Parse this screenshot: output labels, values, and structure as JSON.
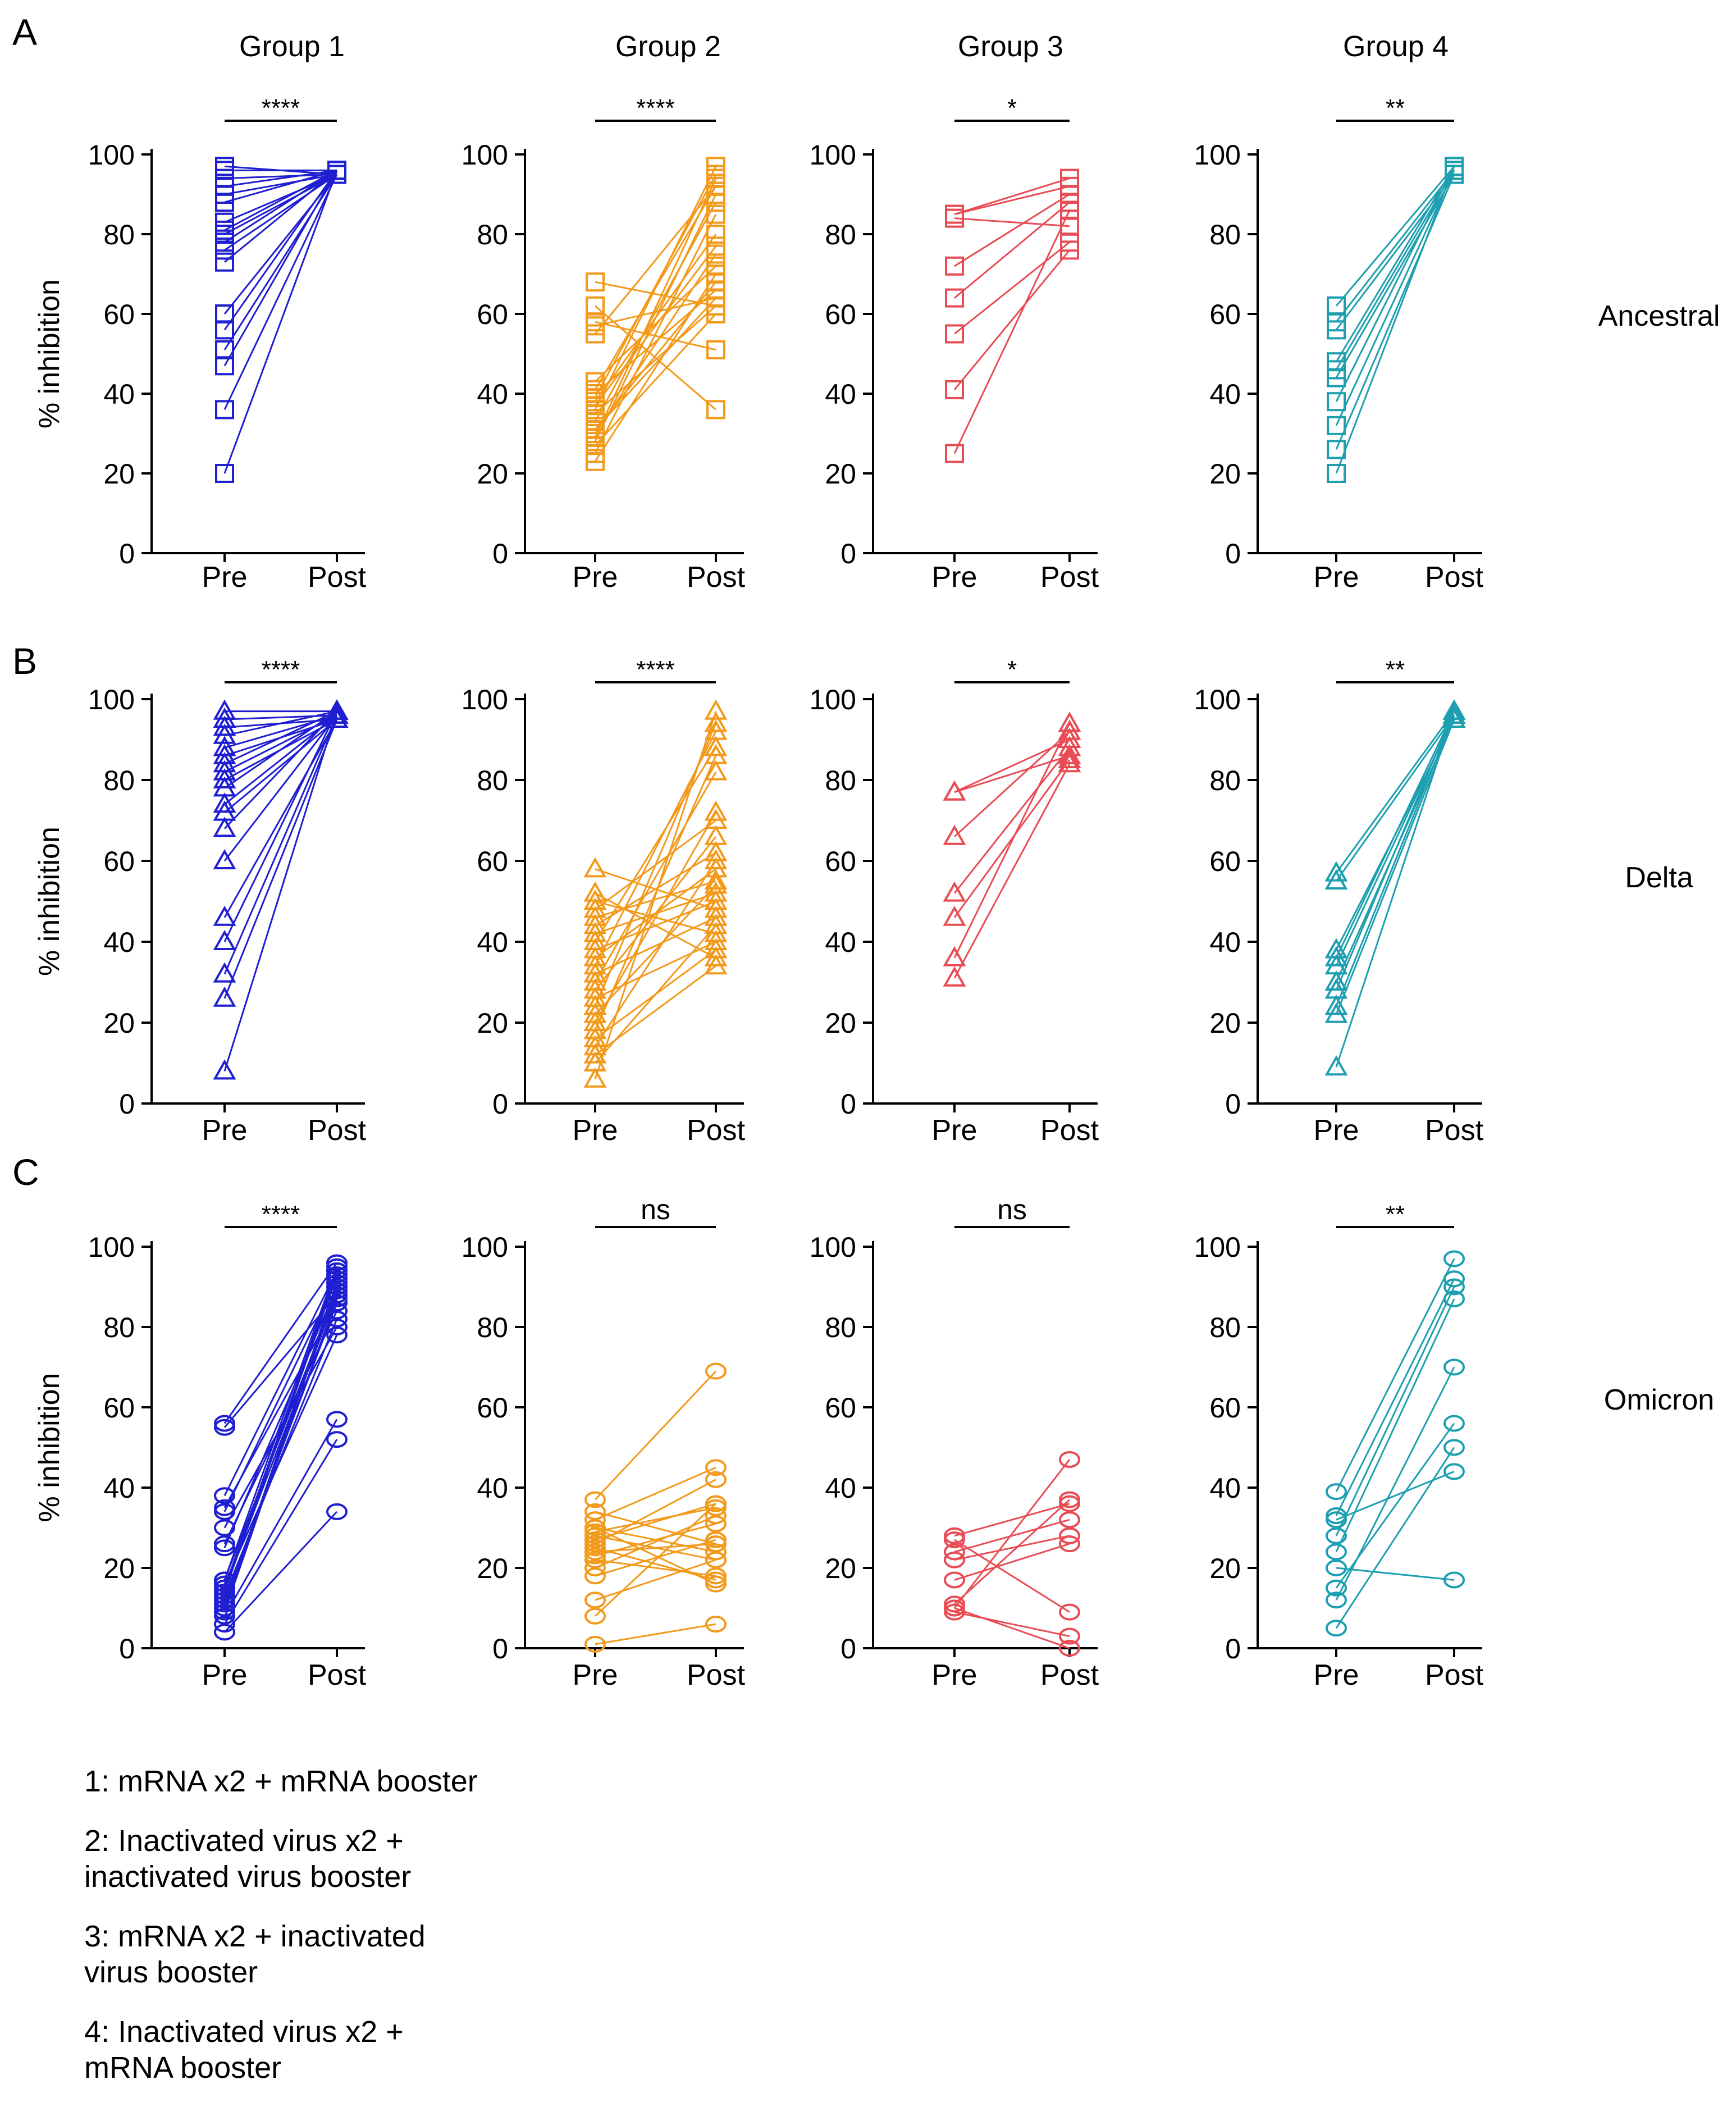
{
  "panel_labels": [
    "A",
    "B",
    "C"
  ],
  "group_titles": [
    "Group 1",
    "Group 2",
    "Group 3",
    "Group 4"
  ],
  "row_labels": [
    "Ancestral",
    "Delta",
    "Omicron"
  ],
  "ylabel": "% inhibition",
  "xticks": [
    "Pre",
    "Post"
  ],
  "yticks": [
    "0",
    "20",
    "40",
    "60",
    "80",
    "100"
  ],
  "colors": {
    "g1": "#1f1fd1",
    "g2": "#f29a1c",
    "g3": "#e84c55",
    "g4": "#1d9fb0"
  },
  "legend": [
    "1: mRNA x2 + mRNA booster",
    "2: Inactivated virus x2 +\ninactivated virus booster",
    "3: mRNA x2 + inactivated\nvirus booster",
    "4: Inactivated virus x2 +\nmRNA booster"
  ],
  "chart_data": [
    {
      "type": "line",
      "variant": "Ancestral",
      "group": "Group 1",
      "marker": "square",
      "color": "#1f1fd1",
      "significance": "****",
      "ylim": [
        0,
        100
      ],
      "xticks": [
        "Pre",
        "Post"
      ],
      "pairs": [
        [
          20,
          96
        ],
        [
          36,
          95
        ],
        [
          47,
          96
        ],
        [
          51,
          95
        ],
        [
          56,
          96
        ],
        [
          60,
          95
        ],
        [
          73,
          96
        ],
        [
          76,
          95
        ],
        [
          78,
          96
        ],
        [
          80,
          95
        ],
        [
          81,
          96
        ],
        [
          83,
          95
        ],
        [
          88,
          96
        ],
        [
          90,
          95
        ],
        [
          92,
          96
        ],
        [
          94,
          95
        ],
        [
          96,
          96
        ],
        [
          97,
          95
        ]
      ]
    },
    {
      "type": "line",
      "variant": "Ancestral",
      "group": "Group 2",
      "marker": "square",
      "color": "#f29a1c",
      "significance": "****",
      "ylim": [
        0,
        100
      ],
      "xticks": [
        "Pre",
        "Post"
      ],
      "pairs": [
        [
          68,
          62
        ],
        [
          62,
          36
        ],
        [
          58,
          51
        ],
        [
          55,
          92
        ],
        [
          57,
          64
        ],
        [
          43,
          72
        ],
        [
          40,
          66
        ],
        [
          38,
          80
        ],
        [
          36,
          97
        ],
        [
          35,
          62
        ],
        [
          33,
          88
        ],
        [
          31,
          68
        ],
        [
          30,
          75
        ],
        [
          29,
          94
        ],
        [
          27,
          60
        ],
        [
          25,
          85
        ],
        [
          23,
          70
        ],
        [
          28,
          90
        ],
        [
          31,
          64
        ],
        [
          37,
          77
        ],
        [
          39,
          95
        ],
        [
          41,
          92
        ]
      ]
    },
    {
      "type": "line",
      "variant": "Ancestral",
      "group": "Group 3",
      "marker": "square",
      "color": "#e84c55",
      "significance": "*",
      "ylim": [
        0,
        100
      ],
      "xticks": [
        "Pre",
        "Post"
      ],
      "pairs": [
        [
          85,
          94
        ],
        [
          84,
          82
        ],
        [
          72,
          90
        ],
        [
          64,
          88
        ],
        [
          55,
          78
        ],
        [
          41,
          76
        ],
        [
          25,
          86
        ],
        [
          85,
          92
        ]
      ]
    },
    {
      "type": "line",
      "variant": "Ancestral",
      "group": "Group 4",
      "marker": "square",
      "color": "#1d9fb0",
      "significance": "**",
      "ylim": [
        0,
        100
      ],
      "xticks": [
        "Pre",
        "Post"
      ],
      "pairs": [
        [
          62,
          97
        ],
        [
          58,
          96
        ],
        [
          56,
          95
        ],
        [
          48,
          97
        ],
        [
          46,
          96
        ],
        [
          44,
          95
        ],
        [
          38,
          97
        ],
        [
          32,
          96
        ],
        [
          26,
          95
        ],
        [
          20,
          97
        ]
      ]
    },
    {
      "type": "line",
      "variant": "Delta",
      "group": "Group 1",
      "marker": "triangle",
      "color": "#1f1fd1",
      "significance": "****",
      "ylim": [
        0,
        100
      ],
      "xticks": [
        "Pre",
        "Post"
      ],
      "pairs": [
        [
          97,
          97
        ],
        [
          95,
          96
        ],
        [
          93,
          95
        ],
        [
          91,
          97
        ],
        [
          88,
          96
        ],
        [
          86,
          95
        ],
        [
          84,
          97
        ],
        [
          82,
          96
        ],
        [
          80,
          95
        ],
        [
          78,
          97
        ],
        [
          74,
          96
        ],
        [
          72,
          95
        ],
        [
          68,
          97
        ],
        [
          60,
          96
        ],
        [
          46,
          95
        ],
        [
          40,
          97
        ],
        [
          32,
          96
        ],
        [
          26,
          95
        ],
        [
          8,
          97
        ]
      ]
    },
    {
      "type": "line",
      "variant": "Delta",
      "group": "Group 2",
      "marker": "triangle",
      "color": "#f29a1c",
      "significance": "****",
      "ylim": [
        0,
        100
      ],
      "xticks": [
        "Pre",
        "Post"
      ],
      "pairs": [
        [
          58,
          48
        ],
        [
          52,
          36
        ],
        [
          50,
          42
        ],
        [
          48,
          70
        ],
        [
          46,
          55
        ],
        [
          44,
          62
        ],
        [
          40,
          88
        ],
        [
          38,
          50
        ],
        [
          36,
          58
        ],
        [
          34,
          92
        ],
        [
          32,
          46
        ],
        [
          30,
          82
        ],
        [
          28,
          66
        ],
        [
          26,
          40
        ],
        [
          22,
          54
        ],
        [
          18,
          86
        ],
        [
          14,
          60
        ],
        [
          10,
          44
        ],
        [
          6,
          97
        ],
        [
          20,
          72
        ],
        [
          12,
          34
        ],
        [
          24,
          94
        ],
        [
          42,
          52
        ],
        [
          16,
          38
        ]
      ]
    },
    {
      "type": "line",
      "variant": "Delta",
      "group": "Group 3",
      "marker": "triangle",
      "color": "#e84c55",
      "significance": "*",
      "ylim": [
        0,
        100
      ],
      "xticks": [
        "Pre",
        "Post"
      ],
      "pairs": [
        [
          77,
          90
        ],
        [
          77,
          86
        ],
        [
          66,
          92
        ],
        [
          52,
          88
        ],
        [
          46,
          85
        ],
        [
          36,
          94
        ],
        [
          31,
          84
        ]
      ]
    },
    {
      "type": "line",
      "variant": "Delta",
      "group": "Group 4",
      "marker": "triangle",
      "color": "#1d9fb0",
      "significance": "**",
      "ylim": [
        0,
        100
      ],
      "xticks": [
        "Pre",
        "Post"
      ],
      "pairs": [
        [
          57,
          97
        ],
        [
          55,
          96
        ],
        [
          38,
          95
        ],
        [
          36,
          97
        ],
        [
          34,
          96
        ],
        [
          30,
          95
        ],
        [
          28,
          97
        ],
        [
          24,
          96
        ],
        [
          22,
          95
        ],
        [
          9,
          97
        ]
      ]
    },
    {
      "type": "line",
      "variant": "Omicron",
      "group": "Group 1",
      "marker": "circle",
      "color": "#1f1fd1",
      "significance": "****",
      "ylim": [
        0,
        100
      ],
      "xticks": [
        "Pre",
        "Post"
      ],
      "pairs": [
        [
          56,
          96
        ],
        [
          55,
          88
        ],
        [
          38,
          94
        ],
        [
          35,
          86
        ],
        [
          34,
          92
        ],
        [
          30,
          80
        ],
        [
          26,
          84
        ],
        [
          25,
          90
        ],
        [
          17,
          95
        ],
        [
          16,
          78
        ],
        [
          15,
          88
        ],
        [
          14,
          93
        ],
        [
          13,
          82
        ],
        [
          12,
          86
        ],
        [
          10,
          91
        ],
        [
          8,
          57
        ],
        [
          6,
          52
        ],
        [
          4,
          34
        ],
        [
          17,
          89
        ],
        [
          15,
          94
        ],
        [
          11,
          87
        ],
        [
          9,
          90
        ]
      ]
    },
    {
      "type": "line",
      "variant": "Omicron",
      "group": "Group 2",
      "marker": "circle",
      "color": "#f29a1c",
      "significance": "ns",
      "ylim": [
        0,
        100
      ],
      "xticks": [
        "Pre",
        "Post"
      ],
      "pairs": [
        [
          37,
          69
        ],
        [
          34,
          26
        ],
        [
          32,
          45
        ],
        [
          30,
          16
        ],
        [
          29,
          35
        ],
        [
          28,
          22
        ],
        [
          27,
          36
        ],
        [
          26,
          42
        ],
        [
          25,
          17
        ],
        [
          24,
          26
        ],
        [
          23,
          31
        ],
        [
          22,
          18
        ],
        [
          18,
          27
        ],
        [
          12,
          22
        ],
        [
          8,
          36
        ],
        [
          1,
          6
        ],
        [
          30,
          24
        ],
        [
          20,
          33
        ]
      ]
    },
    {
      "type": "line",
      "variant": "Omicron",
      "group": "Group 3",
      "marker": "circle",
      "color": "#e84c55",
      "significance": "ns",
      "ylim": [
        0,
        100
      ],
      "xticks": [
        "Pre",
        "Post"
      ],
      "pairs": [
        [
          28,
          36
        ],
        [
          24,
          32
        ],
        [
          22,
          28
        ],
        [
          17,
          26
        ],
        [
          11,
          37
        ],
        [
          10,
          0
        ],
        [
          9,
          3
        ],
        [
          10,
          47
        ],
        [
          27,
          9
        ]
      ]
    },
    {
      "type": "line",
      "variant": "Omicron",
      "group": "Group 4",
      "marker": "circle",
      "color": "#1d9fb0",
      "significance": "**",
      "ylim": [
        0,
        100
      ],
      "xticks": [
        "Pre",
        "Post"
      ],
      "pairs": [
        [
          39,
          97
        ],
        [
          33,
          92
        ],
        [
          32,
          44
        ],
        [
          28,
          90
        ],
        [
          24,
          87
        ],
        [
          20,
          17
        ],
        [
          15,
          56
        ],
        [
          12,
          70
        ],
        [
          5,
          50
        ]
      ]
    }
  ]
}
